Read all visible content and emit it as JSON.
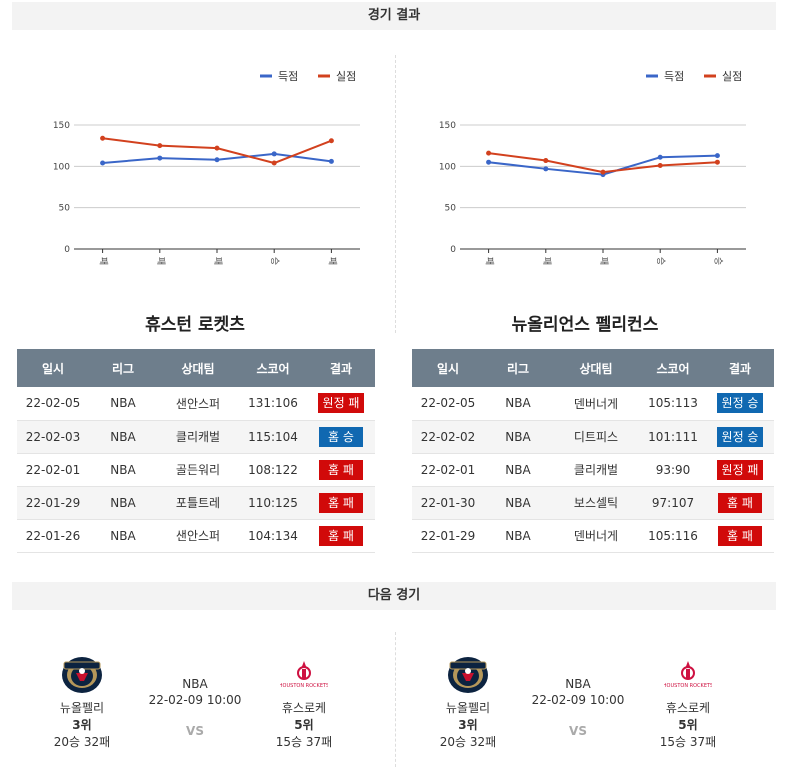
{
  "sections": {
    "results_title": "경기 결과",
    "next_title": "다음 경기"
  },
  "legend": {
    "scored": "득점",
    "allowed": "실점"
  },
  "colors": {
    "scored": "#3a66c8",
    "allowed": "#d2411e",
    "win_badge": "#1068b1",
    "loss_badge": "#d10a0a"
  },
  "chart_data": [
    {
      "type": "line",
      "team": "휴스턴 로켓츠",
      "categories": [
        "패",
        "패",
        "패",
        "승",
        "패"
      ],
      "series": [
        {
          "name": "득점",
          "values": [
            104,
            110,
            108,
            115,
            106
          ]
        },
        {
          "name": "실점",
          "values": [
            134,
            125,
            122,
            104,
            131
          ]
        }
      ],
      "yticks": [
        0,
        50,
        100,
        150
      ],
      "ylim": [
        0,
        150
      ],
      "grid": true,
      "legend_position": "top-right"
    },
    {
      "type": "line",
      "team": "뉴올리언스 펠리컨스",
      "categories": [
        "패",
        "패",
        "패",
        "승",
        "승"
      ],
      "series": [
        {
          "name": "득점",
          "values": [
            105,
            97,
            90,
            111,
            113
          ]
        },
        {
          "name": "실점",
          "values": [
            116,
            107,
            93,
            101,
            105
          ]
        }
      ],
      "yticks": [
        0,
        50,
        100,
        150
      ],
      "ylim": [
        0,
        150
      ],
      "grid": true,
      "legend_position": "top-right"
    }
  ],
  "teams": [
    {
      "name": "휴스턴 로켓츠",
      "headers": [
        "일시",
        "리그",
        "상대팀",
        "스코어",
        "결과"
      ],
      "rows": [
        {
          "date": "22-02-05",
          "league": "NBA",
          "opponent": "샌안스퍼",
          "score": "131:106",
          "result": "원정 패",
          "color": "red"
        },
        {
          "date": "22-02-03",
          "league": "NBA",
          "opponent": "클리캐벌",
          "score": "115:104",
          "result": "홈 승",
          "color": "blue"
        },
        {
          "date": "22-02-01",
          "league": "NBA",
          "opponent": "골든워리",
          "score": "108:122",
          "result": "홈 패",
          "color": "red"
        },
        {
          "date": "22-01-29",
          "league": "NBA",
          "opponent": "포틀트레",
          "score": "110:125",
          "result": "홈 패",
          "color": "red"
        },
        {
          "date": "22-01-26",
          "league": "NBA",
          "opponent": "샌안스퍼",
          "score": "104:134",
          "result": "홈 패",
          "color": "red"
        }
      ]
    },
    {
      "name": "뉴올리언스 펠리컨스",
      "headers": [
        "일시",
        "리그",
        "상대팀",
        "스코어",
        "결과"
      ],
      "rows": [
        {
          "date": "22-02-05",
          "league": "NBA",
          "opponent": "덴버너게",
          "score": "105:113",
          "result": "원정 승",
          "color": "blue"
        },
        {
          "date": "22-02-02",
          "league": "NBA",
          "opponent": "디트피스",
          "score": "101:111",
          "result": "원정 승",
          "color": "blue"
        },
        {
          "date": "22-02-01",
          "league": "NBA",
          "opponent": "클리캐벌",
          "score": "93:90",
          "result": "원정 패",
          "color": "red"
        },
        {
          "date": "22-01-30",
          "league": "NBA",
          "opponent": "보스셀틱",
          "score": "97:107",
          "result": "홈 패",
          "color": "red"
        },
        {
          "date": "22-01-29",
          "league": "NBA",
          "opponent": "덴버너게",
          "score": "105:116",
          "result": "홈 패",
          "color": "red"
        }
      ]
    }
  ],
  "next_games": [
    {
      "league": "NBA",
      "datetime": "22-02-09 10:00",
      "vs": "VS",
      "home": {
        "name": "뉴올펠리",
        "rank": "3위",
        "record": "20승 32패",
        "logo": "pelicans-logo"
      },
      "away": {
        "name": "휴스로케",
        "rank": "5위",
        "record": "15승 37패",
        "logo": "rockets-logo"
      }
    },
    {
      "league": "NBA",
      "datetime": "22-02-09 10:00",
      "vs": "VS",
      "home": {
        "name": "뉴올펠리",
        "rank": "3위",
        "record": "20승 32패",
        "logo": "pelicans-logo"
      },
      "away": {
        "name": "휴스로케",
        "rank": "5위",
        "record": "15승 37패",
        "logo": "rockets-logo"
      }
    }
  ]
}
